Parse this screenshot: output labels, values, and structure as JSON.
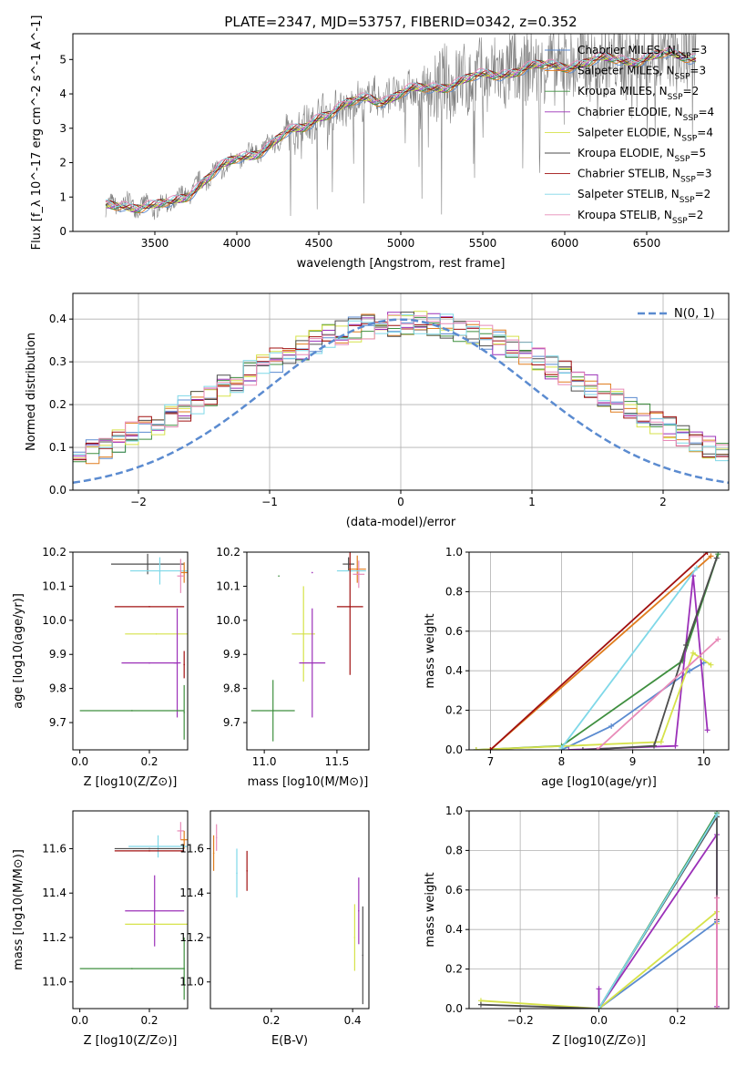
{
  "figure": {
    "title": "PLATE=2347, MJD=53757, FIBERID=0342, z=0.352"
  },
  "colors": [
    "#5b8bd0",
    "#e07d1e",
    "#3f8f3f",
    "#9b30b8",
    "#d6e24a",
    "#4d4d4d",
    "#a01010",
    "#7fd8e8",
    "#e88ab8"
  ],
  "chart_data": [
    {
      "id": "spectrum",
      "type": "line",
      "xlabel": "wavelength [Angstrom, rest frame]",
      "ylabel": "Flux [f_λ 10^-17 erg cm^-2 s^-1 A^-1]",
      "xlim": [
        3000,
        7000
      ],
      "ylim": [
        0,
        5.75
      ],
      "xticks": [
        3500,
        4000,
        4500,
        5000,
        5500,
        6000,
        6500
      ],
      "yticks": [
        0,
        1,
        2,
        3,
        4,
        5
      ],
      "continuum": {
        "x": [
          3200,
          3300,
          3400,
          3500,
          3600,
          3700,
          3800,
          3900,
          4000,
          4100,
          4200,
          4300,
          4400,
          4500,
          4600,
          4700,
          4800,
          4900,
          5000,
          5100,
          5200,
          5300,
          5400,
          5500,
          5600,
          5700,
          5800,
          5900,
          6000,
          6100,
          6200,
          6300,
          6400,
          6500,
          6600,
          6700,
          6800
        ],
        "y": [
          0.7,
          0.8,
          0.75,
          0.7,
          0.8,
          1.1,
          1.5,
          1.8,
          2.1,
          2.3,
          2.5,
          2.8,
          3.0,
          3.4,
          3.5,
          3.7,
          3.9,
          3.85,
          4.0,
          4.1,
          4.2,
          4.3,
          4.4,
          4.5,
          4.6,
          4.7,
          4.75,
          4.8,
          4.85,
          4.9,
          4.95,
          5.0,
          5.0,
          5.05,
          5.1,
          5.1,
          5.1
        ]
      },
      "data_color": "#808080",
      "legend": [
        {
          "label": "Chabrier MILES, N",
          "sub": "SSP",
          "suffix": "=3"
        },
        {
          "label": "Salpeter MILES, N",
          "sub": "SSP",
          "suffix": "=3"
        },
        {
          "label": "Kroupa MILES, N",
          "sub": "SSP",
          "suffix": "=2"
        },
        {
          "label": "Chabrier ELODIE, N",
          "sub": "SSP",
          "suffix": "=4"
        },
        {
          "label": "Salpeter ELODIE, N",
          "sub": "SSP",
          "suffix": "=4"
        },
        {
          "label": "Kroupa ELODIE, N",
          "sub": "SSP",
          "suffix": "=5"
        },
        {
          "label": "Chabrier STELIB, N",
          "sub": "SSP",
          "suffix": "=3"
        },
        {
          "label": "Salpeter STELIB, N",
          "sub": "SSP",
          "suffix": "=2"
        },
        {
          "label": "Kroupa STELIB, N",
          "sub": "SSP",
          "suffix": "=2"
        }
      ],
      "legend_location": "upper right",
      "grid": false
    },
    {
      "id": "residuals",
      "type": "histogram",
      "xlabel": "(data-model)/error",
      "ylabel": "Normed distribution",
      "xlim": [
        -2.5,
        2.5
      ],
      "ylim": [
        0,
        0.46
      ],
      "xticks": [
        -2,
        -1,
        0,
        1,
        2
      ],
      "yticks": [
        0.0,
        0.1,
        0.2,
        0.3,
        0.4
      ],
      "gaussian": {
        "label": "N(0, 1)",
        "mu": 0,
        "sigma": 1,
        "color": "#5b8bd0"
      },
      "grid": true,
      "legend_location": "upper right"
    },
    {
      "id": "age_vs_Z",
      "type": "errorbar",
      "xlabel": "Z [log10(Z/Z⊙)]",
      "ylabel": "age  [log10(age/yr)]",
      "xlim": [
        -0.02,
        0.31
      ],
      "ylim": [
        9.62,
        10.2
      ],
      "xticks": [
        0.0,
        0.2
      ],
      "yticks": [
        9.7,
        9.8,
        9.9,
        10.0,
        10.1,
        10.2
      ],
      "points": [
        {
          "c": 5,
          "x": 0.195,
          "y": 10.165,
          "xe": 0.105,
          "ye": 0.03
        },
        {
          "c": 7,
          "x": 0.23,
          "y": 10.145,
          "xe": 0.085,
          "ye": 0.04
        },
        {
          "c": 1,
          "x": 0.3,
          "y": 10.14,
          "xe": 0.01,
          "ye": 0.03
        },
        {
          "c": 8,
          "x": 0.29,
          "y": 10.13,
          "xe": 0.01,
          "ye": 0.05
        },
        {
          "c": 6,
          "x": 0.2,
          "y": 10.04,
          "xe": 0.1,
          "ye": 0.0
        },
        {
          "c": 4,
          "x": 0.22,
          "y": 9.96,
          "xe": 0.09,
          "ye": 0.0
        },
        {
          "c": 3,
          "x": 0.2,
          "y": 9.875,
          "xe": 0.08,
          "ye": 0.0
        },
        {
          "c": 3,
          "x": 0.28,
          "y": 9.875,
          "xe": 0.01,
          "ye": 0.16
        },
        {
          "c": 6,
          "x": 0.3,
          "y": 9.87,
          "xe": 0.0,
          "ye": 0.04
        },
        {
          "c": 2,
          "x": 0.15,
          "y": 9.735,
          "xe": 0.15,
          "ye": 0.0
        },
        {
          "c": 2,
          "x": 0.3,
          "y": 9.73,
          "xe": 0.0,
          "ye": 0.08
        }
      ]
    },
    {
      "id": "age_vs_mass",
      "type": "errorbar",
      "xlabel": "mass [log10(M/M⊙)]",
      "ylabel": "",
      "xlim": [
        10.88,
        11.72
      ],
      "ylim": [
        9.62,
        10.2
      ],
      "xticks": [
        11.0,
        11.5
      ],
      "yticks": [
        9.7,
        9.8,
        9.9,
        10.0,
        10.1,
        10.2
      ],
      "points": [
        {
          "c": 5,
          "x": 11.58,
          "y": 10.165,
          "xe": 0.04,
          "ye": 0.02
        },
        {
          "c": 1,
          "x": 11.64,
          "y": 10.15,
          "xe": 0.06,
          "ye": 0.04
        },
        {
          "c": 8,
          "x": 11.65,
          "y": 10.135,
          "xe": 0.04,
          "ye": 0.04
        },
        {
          "c": 7,
          "x": 11.6,
          "y": 10.145,
          "xe": 0.1,
          "ye": 0.0
        },
        {
          "c": 3,
          "x": 11.33,
          "y": 10.14,
          "xe": 0.0,
          "ye": 0.0
        },
        {
          "c": 2,
          "x": 11.1,
          "y": 10.13,
          "xe": 0.0,
          "ye": 0.0
        },
        {
          "c": 6,
          "x": 11.59,
          "y": 10.04,
          "xe": 0.09,
          "ye": 0.2
        },
        {
          "c": 4,
          "x": 11.27,
          "y": 9.96,
          "xe": 0.08,
          "ye": 0.14
        },
        {
          "c": 3,
          "x": 11.33,
          "y": 9.875,
          "xe": 0.09,
          "ye": 0.16
        },
        {
          "c": 2,
          "x": 11.06,
          "y": 9.735,
          "xe": 0.15,
          "ye": 0.09
        }
      ]
    },
    {
      "id": "mass_weight_vs_age",
      "type": "line",
      "xlabel": "age  [log10(age/yr)]",
      "ylabel": "mass weight",
      "xlim": [
        6.7,
        10.35
      ],
      "ylim": [
        0,
        1.0
      ],
      "xticks": [
        7,
        8,
        9,
        10
      ],
      "yticks": [
        0.0,
        0.2,
        0.4,
        0.6,
        0.8,
        1.0
      ],
      "grid": true,
      "series": [
        {
          "c": 0,
          "x": [
            8.0,
            8.7,
            9.8,
            10.0
          ],
          "y": [
            0.0,
            0.12,
            0.4,
            0.44
          ]
        },
        {
          "c": 1,
          "x": 7.0,
          "xs": [
            7.0,
            10.1
          ],
          "ys": [
            0.0,
            0.98
          ]
        },
        {
          "c": 2,
          "xs": [
            6.8,
            8.0,
            9.7,
            10.2
          ],
          "ys": [
            0.0,
            0.02,
            0.45,
            0.99
          ]
        },
        {
          "c": 3,
          "xs": [
            8.1,
            9.6,
            9.85,
            10.05
          ],
          "ys": [
            0.0,
            0.02,
            0.88,
            0.1
          ]
        },
        {
          "c": 4,
          "xs": [
            6.8,
            9.4,
            9.85,
            10.1
          ],
          "ys": [
            0.0,
            0.04,
            0.49,
            0.43
          ]
        },
        {
          "c": 5,
          "xs": [
            8.3,
            9.3,
            9.75,
            10.18
          ],
          "ys": [
            0.0,
            0.02,
            0.53,
            0.97
          ]
        },
        {
          "c": 6,
          "xs": [
            7.0,
            10.05
          ],
          "ys": [
            0.0,
            1.0
          ]
        },
        {
          "c": 7,
          "xs": [
            8.0,
            9.9
          ],
          "ys": [
            0.01,
            0.92
          ]
        },
        {
          "c": 8,
          "xs": [
            8.5,
            10.2
          ],
          "ys": [
            0.0,
            0.56
          ]
        }
      ]
    },
    {
      "id": "mass_vs_Z",
      "type": "errorbar",
      "xlabel": "Z [log10(Z/Z⊙)]",
      "ylabel": "mass [log10(M/M⊙)]",
      "xlim": [
        -0.02,
        0.31
      ],
      "ylim": [
        10.88,
        11.77
      ],
      "xticks": [
        0.0,
        0.2
      ],
      "yticks": [
        11.0,
        11.2,
        11.4,
        11.6
      ],
      "points": [
        {
          "c": 8,
          "x": 0.29,
          "y": 11.68,
          "xe": 0.01,
          "ye": 0.04
        },
        {
          "c": 1,
          "x": 0.3,
          "y": 11.64,
          "xe": 0.01,
          "ye": 0.04
        },
        {
          "c": 7,
          "x": 0.225,
          "y": 11.61,
          "xe": 0.085,
          "ye": 0.05
        },
        {
          "c": 5,
          "x": 0.2,
          "y": 11.6,
          "xe": 0.1,
          "ye": 0.0
        },
        {
          "c": 6,
          "x": 0.2,
          "y": 11.59,
          "xe": 0.1,
          "ye": 0.0
        },
        {
          "c": 3,
          "x": 0.215,
          "y": 11.32,
          "xe": 0.085,
          "ye": 0.16
        },
        {
          "c": 4,
          "x": 0.22,
          "y": 11.26,
          "xe": 0.09,
          "ye": 0.0
        },
        {
          "c": 2,
          "x": 0.15,
          "y": 11.06,
          "xe": 0.15,
          "ye": 0.0
        },
        {
          "c": 2,
          "x": 0.3,
          "y": 11.06,
          "xe": 0.0,
          "ye": 0.14
        }
      ]
    },
    {
      "id": "mass_vs_EBV",
      "type": "errorbar",
      "xlabel": "E(B-V)",
      "ylabel": "",
      "xlim": [
        0.05,
        0.44
      ],
      "ylim": [
        10.88,
        11.77
      ],
      "xticks": [
        0.2,
        0.4
      ],
      "yticks": [
        11.0,
        11.2,
        11.4,
        11.6
      ],
      "points": [
        {
          "c": 8,
          "x": 0.065,
          "y": 11.65,
          "xe": 0.0,
          "ye": 0.06
        },
        {
          "c": 1,
          "x": 0.058,
          "y": 11.58,
          "xe": 0.0,
          "ye": 0.08
        },
        {
          "c": 7,
          "x": 0.115,
          "y": 11.49,
          "xe": 0.0,
          "ye": 0.11
        },
        {
          "c": 6,
          "x": 0.14,
          "y": 11.5,
          "xe": 0.0,
          "ye": 0.09
        },
        {
          "c": 3,
          "x": 0.415,
          "y": 11.32,
          "xe": 0.0,
          "ye": 0.15
        },
        {
          "c": 4,
          "x": 0.405,
          "y": 11.2,
          "xe": 0.0,
          "ye": 0.15
        },
        {
          "c": 5,
          "x": 0.425,
          "y": 11.12,
          "xe": 0.0,
          "ye": 0.22
        }
      ]
    },
    {
      "id": "mass_weight_vs_Z",
      "type": "line",
      "xlabel": "Z [log10(Z/Z⊙)]",
      "ylabel": "mass weight",
      "xlim": [
        -0.33,
        0.33
      ],
      "ylim": [
        0,
        1.0
      ],
      "xticks": [
        -0.2,
        0.0,
        0.2
      ],
      "yticks": [
        0.0,
        0.2,
        0.4,
        0.6,
        0.8,
        1.0
      ],
      "grid": true,
      "series": [
        {
          "c": 0,
          "xs": [
            0.0,
            0.3
          ],
          "ys": [
            0.0,
            0.44
          ]
        },
        {
          "c": 2,
          "xs": [
            0.0,
            0.3
          ],
          "ys": [
            0.0,
            0.99
          ]
        },
        {
          "c": 3,
          "xs": [
            0.0,
            0.0,
            0.3,
            0.3
          ],
          "ys": [
            0.1,
            0.0,
            0.88,
            0.01
          ]
        },
        {
          "c": 4,
          "xs": [
            -0.3,
            0.0,
            0.3,
            0.3
          ],
          "ys": [
            0.04,
            0.0,
            0.49,
            0.43
          ]
        },
        {
          "c": 5,
          "xs": [
            -0.3,
            0.0,
            0.3,
            0.3
          ],
          "ys": [
            0.02,
            0.0,
            0.97,
            0.45
          ]
        },
        {
          "c": 7,
          "xs": [
            0.0,
            0.3
          ],
          "ys": [
            0.0,
            0.98
          ]
        },
        {
          "c": 8,
          "xs": [
            0.3,
            0.3
          ],
          "ys": [
            0.0,
            0.56
          ]
        }
      ]
    }
  ]
}
